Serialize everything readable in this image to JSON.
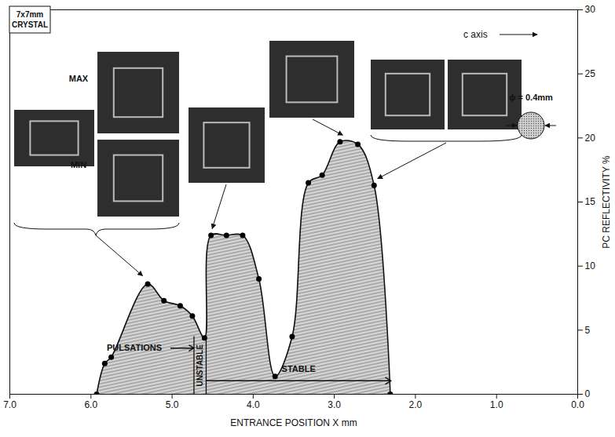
{
  "chart_data": {
    "type": "scatter",
    "crystal_label": [
      "7x7mm",
      "CRYSTAL"
    ],
    "xlabel": "ENTRANCE POSITION X mm",
    "ylabel": "PC REFLECTIVITY %",
    "x": [
      5.93,
      5.83,
      5.75,
      5.3,
      5.1,
      4.9,
      4.75,
      4.6,
      4.52,
      4.33,
      4.13,
      3.93,
      3.73,
      3.52,
      3.32,
      3.15,
      2.93,
      2.71,
      2.51,
      2.31
    ],
    "values": [
      0,
      2.4,
      2.9,
      8.6,
      7.3,
      6.9,
      6.1,
      4.4,
      12.4,
      12.4,
      12.4,
      9.0,
      1.4,
      4.5,
      16.5,
      17.1,
      19.7,
      19.5,
      16.3,
      0
    ],
    "xlim": [
      7,
      0
    ],
    "ylim": [
      0,
      30
    ],
    "xticks": [
      7,
      6,
      5,
      4,
      3,
      2,
      1,
      0
    ],
    "yticks": [
      0,
      5,
      10,
      15,
      20,
      25,
      30
    ],
    "marker": "circle",
    "line_style": "solid",
    "color": "#000000",
    "annotations": {
      "max": "MAX",
      "min": "MIN",
      "c_axis": "c axis",
      "beam": "ϕ = 0.4mm"
    },
    "regions": [
      {
        "label": "PULSATIONS",
        "from": 5.9,
        "to": 4.73
      },
      {
        "label": "UNSTABLE",
        "from": 4.73,
        "to": 4.58
      },
      {
        "label": "STABLE",
        "from": 4.58,
        "to": 2.3
      }
    ]
  }
}
